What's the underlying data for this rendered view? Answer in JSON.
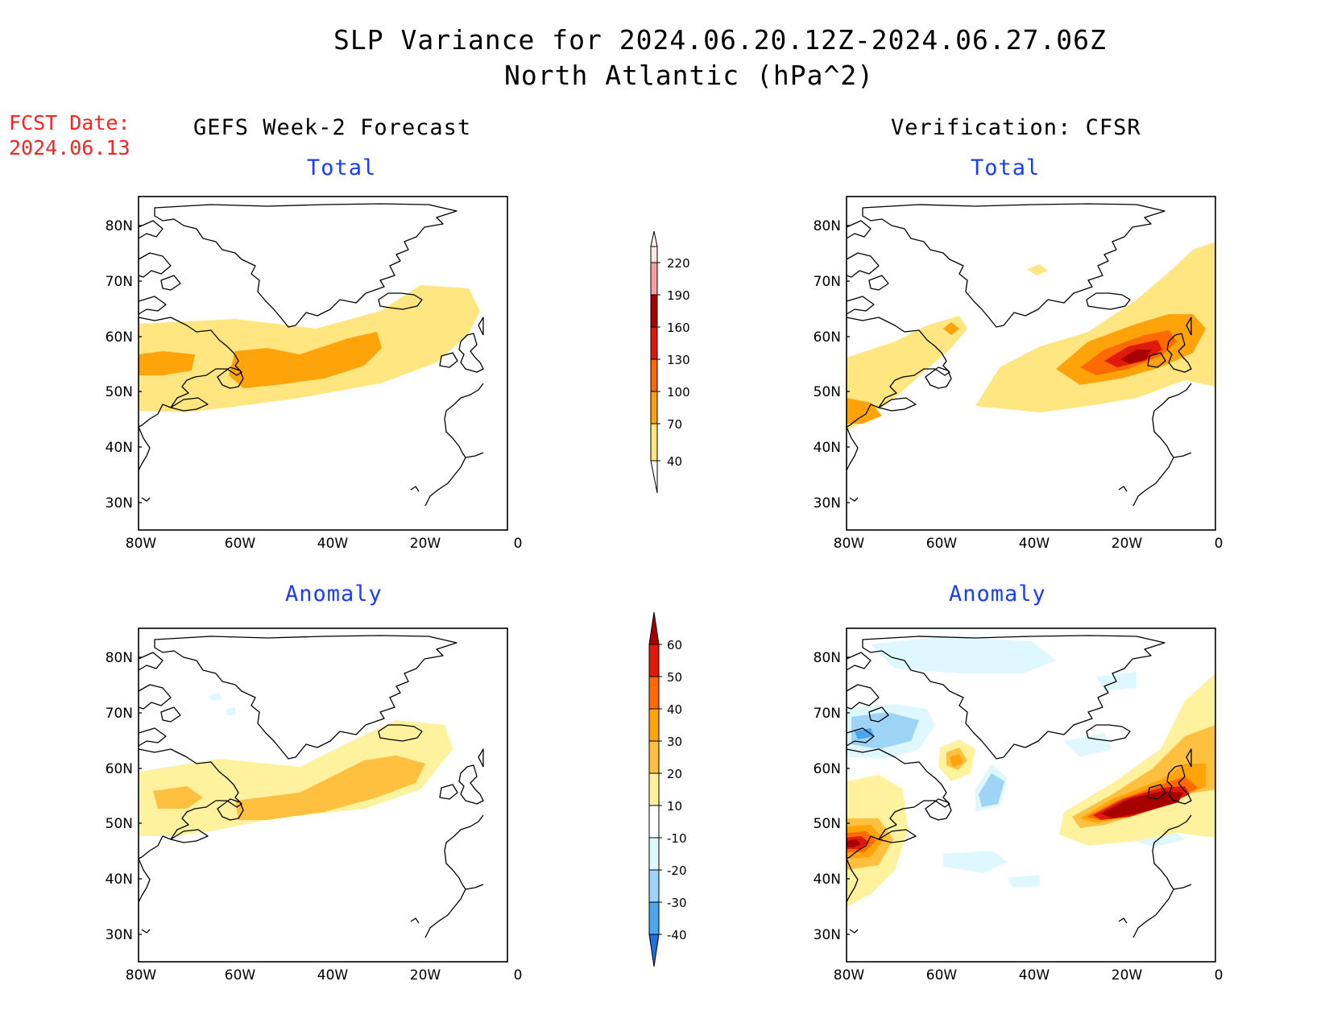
{
  "header": {
    "title_line1": "SLP Variance for 2024.06.20.12Z-2024.06.27.06Z",
    "title_line2": "North Atlantic (hPa^2)",
    "fcst_label": "FCST Date:",
    "fcst_date": "2024.06.13",
    "left_column": "GEFS Week-2 Forecast",
    "right_column": "Verification: CFSR"
  },
  "panels": {
    "total": "Total",
    "anomaly": "Anomaly"
  },
  "axes": {
    "lat_labels": [
      "80N",
      "70N",
      "60N",
      "50N",
      "40N",
      "30N"
    ],
    "lon_labels": [
      "80W",
      "60W",
      "40W",
      "20W",
      "0"
    ]
  },
  "colorbar_total": {
    "levels": [
      "220",
      "190",
      "160",
      "130",
      "100",
      "70",
      "40"
    ],
    "colors": [
      "#fde6e6",
      "#f4a1a1",
      "#a80000",
      "#e01a0a",
      "#ff6a00",
      "#ffa30a",
      "#ffe680"
    ]
  },
  "colorbar_anomaly": {
    "levels": [
      "60",
      "50",
      "40",
      "30",
      "20",
      "10",
      "-10",
      "-20",
      "-30",
      "-40"
    ],
    "colors": [
      "#a80000",
      "#e01a0a",
      "#ff6a00",
      "#ffa30a",
      "#ffc040",
      "#fff29e",
      "#ffffff",
      "#dff8ff",
      "#9ed4f6",
      "#4aa6ee",
      "#1e6fe0"
    ]
  },
  "legend_palette": {
    "c40": "#ffe680",
    "c70": "#ffa30a",
    "c100": "#ff6a00",
    "c130": "#e01a0a",
    "c160": "#a80000",
    "a10": "#fff29e",
    "a20": "#ffc040",
    "a30": "#ffa30a",
    "a40": "#ff6a00",
    "a50": "#e01a0a",
    "a60": "#a80000",
    "n10": "#dff8ff",
    "n20": "#9ed4f6",
    "n30": "#4aa6ee"
  }
}
